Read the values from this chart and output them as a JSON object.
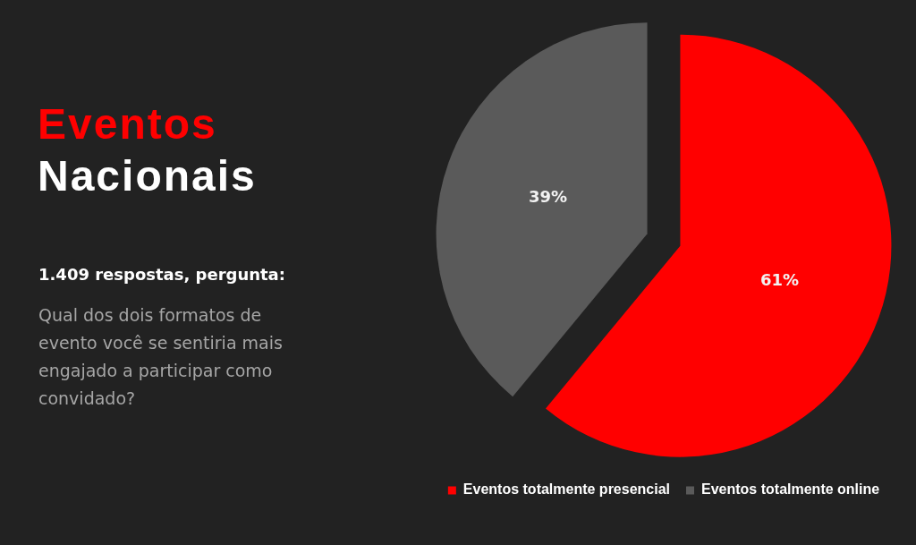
{
  "chart_data": {
    "type": "pie",
    "title": "Eventos Nacionais",
    "subtitle": "1.409 respostas, pergunta:",
    "annotations": [
      "Qual dos dois formatos de evento você se sentiria mais engajado a participar como convidado?"
    ],
    "categories": [
      "Eventos totalmente presencial",
      "Eventos totalmente online"
    ],
    "values": [
      61,
      39
    ],
    "colors": [
      "#ff0000",
      "#5a5a5a"
    ],
    "value_labels": [
      "61%",
      "39%"
    ],
    "legend": "bottom"
  }
}
